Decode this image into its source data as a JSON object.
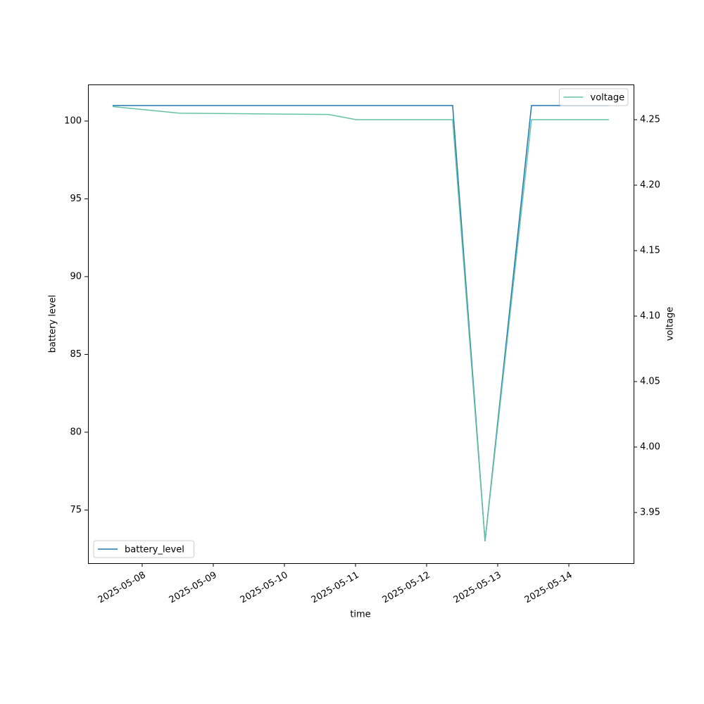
{
  "chart_data": {
    "type": "line",
    "x_label": "time",
    "y_label": "battery level",
    "y2_label": "voltage",
    "x": [
      20215.584,
      20216.525,
      20218.624,
      20219.01,
      20220.366,
      20220.822,
      20221.475,
      20222.564
    ],
    "xlim": [
      20215.238,
      20222.911
    ],
    "xticks": [
      {
        "value": 20216,
        "label": "2025-05-08"
      },
      {
        "value": 20217,
        "label": "2025-05-09"
      },
      {
        "value": 20218,
        "label": "2025-05-10"
      },
      {
        "value": 20219,
        "label": "2025-05-11"
      },
      {
        "value": 20220,
        "label": "2025-05-12"
      },
      {
        "value": 20221,
        "label": "2025-05-13"
      },
      {
        "value": 20222,
        "label": "2025-05-14"
      }
    ],
    "ylim": [
      71.58,
      102.35
    ],
    "yticks": [
      75,
      80,
      85,
      90,
      95,
      100
    ],
    "y2lim": [
      3.9113,
      4.2769
    ],
    "y2ticks": [
      3.95,
      {
        "value": 4.0,
        "label": "4.00"
      },
      4.05,
      {
        "value": 4.1,
        "label": "4.10"
      },
      4.15,
      {
        "value": 4.2,
        "label": "4.20"
      },
      4.25
    ],
    "grid": false,
    "series": [
      {
        "name": "battery_level",
        "color": "#1f77b4",
        "axis": "y",
        "legend": "lower left",
        "values": [
          101,
          101,
          101,
          101,
          101,
          73,
          101,
          101
        ]
      },
      {
        "name": "voltage",
        "color": "#66c2a5",
        "axis": "y2",
        "legend": "upper right",
        "values": [
          4.26,
          4.255,
          4.254,
          4.25,
          4.25,
          3.928,
          4.25,
          4.25
        ]
      }
    ]
  }
}
